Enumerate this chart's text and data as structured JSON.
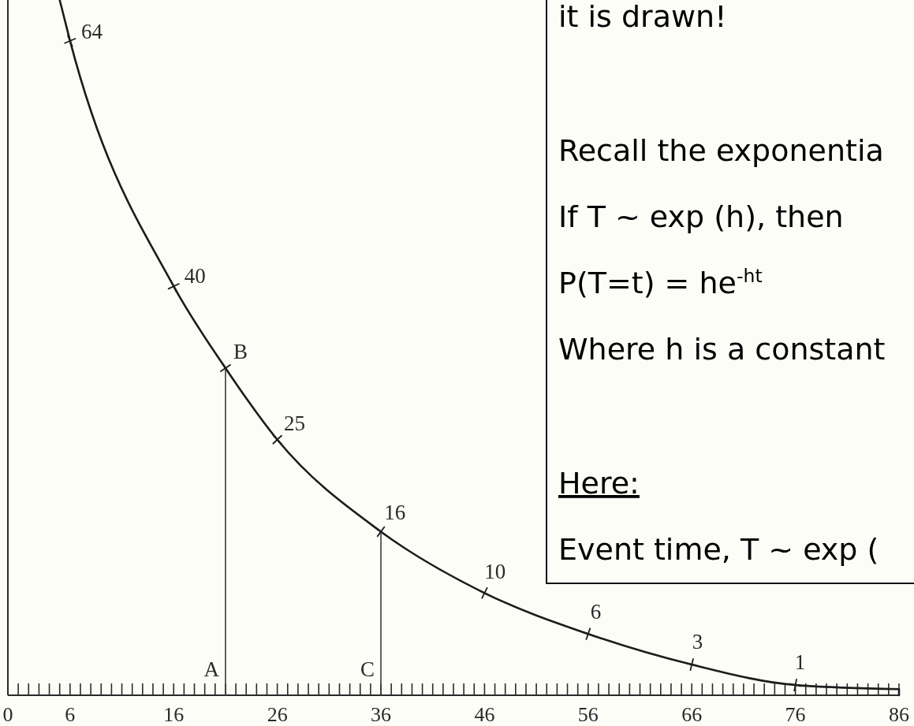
{
  "chart_data": {
    "type": "line",
    "xlim": [
      0,
      86
    ],
    "ylim": [
      0,
      68
    ],
    "tick_labels": "x",
    "xticks": [
      0,
      {
        "value": 1,
        "label": null
      },
      {
        "value": 2,
        "label": null
      },
      {
        "value": 3,
        "label": null
      },
      {
        "value": 4,
        "label": null
      },
      {
        "value": 5,
        "label": null
      },
      6,
      {
        "value": 7,
        "label": null
      },
      {
        "value": 8,
        "label": null
      },
      {
        "value": 9,
        "label": null
      },
      {
        "value": 10,
        "label": null
      },
      {
        "value": 11,
        "label": null
      },
      {
        "value": 12,
        "label": null
      },
      {
        "value": 13,
        "label": null
      },
      {
        "value": 14,
        "label": null
      },
      {
        "value": 15,
        "label": null
      },
      16,
      {
        "value": 17,
        "label": null
      },
      {
        "value": 18,
        "label": null
      },
      {
        "value": 19,
        "label": null
      },
      {
        "value": 20,
        "label": null
      },
      {
        "value": 21,
        "label": null
      },
      {
        "value": 22,
        "label": null
      },
      {
        "value": 23,
        "label": null
      },
      {
        "value": 24,
        "label": null
      },
      {
        "value": 25,
        "label": null
      },
      26,
      {
        "value": 27,
        "label": null
      },
      {
        "value": 28,
        "label": null
      },
      {
        "value": 29,
        "label": null
      },
      {
        "value": 30,
        "label": null
      },
      {
        "value": 31,
        "label": null
      },
      {
        "value": 32,
        "label": null
      },
      {
        "value": 33,
        "label": null
      },
      {
        "value": 34,
        "label": null
      },
      {
        "value": 35,
        "label": null
      },
      36,
      {
        "value": 37,
        "label": null
      },
      {
        "value": 38,
        "label": null
      },
      {
        "value": 39,
        "label": null
      },
      {
        "value": 40,
        "label": null
      },
      {
        "value": 41,
        "label": null
      },
      {
        "value": 42,
        "label": null
      },
      {
        "value": 43,
        "label": null
      },
      {
        "value": 44,
        "label": null
      },
      {
        "value": 45,
        "label": null
      },
      46,
      {
        "value": 47,
        "label": null
      },
      {
        "value": 48,
        "label": null
      },
      {
        "value": 49,
        "label": null
      },
      {
        "value": 50,
        "label": null
      },
      {
        "value": 51,
        "label": null
      },
      {
        "value": 52,
        "label": null
      },
      {
        "value": 53,
        "label": null
      },
      {
        "value": 54,
        "label": null
      },
      {
        "value": 55,
        "label": null
      },
      56,
      {
        "value": 57,
        "label": null
      },
      {
        "value": 58,
        "label": null
      },
      {
        "value": 59,
        "label": null
      },
      {
        "value": 60,
        "label": null
      },
      {
        "value": 61,
        "label": null
      },
      {
        "value": 62,
        "label": null
      },
      {
        "value": 63,
        "label": null
      },
      {
        "value": 64,
        "label": null
      },
      {
        "value": 65,
        "label": null
      },
      66,
      {
        "value": 67,
        "label": null
      },
      {
        "value": 68,
        "label": null
      },
      {
        "value": 69,
        "label": null
      },
      {
        "value": 70,
        "label": null
      },
      {
        "value": 71,
        "label": null
      },
      {
        "value": 72,
        "label": null
      },
      {
        "value": 73,
        "label": null
      },
      {
        "value": 74,
        "label": null
      },
      {
        "value": 75,
        "label": null
      },
      76,
      {
        "value": 77,
        "label": null
      },
      {
        "value": 78,
        "label": null
      },
      {
        "value": 79,
        "label": null
      },
      {
        "value": 80,
        "label": null
      },
      {
        "value": 81,
        "label": null
      },
      {
        "value": 82,
        "label": null
      },
      {
        "value": 83,
        "label": null
      },
      {
        "value": 84,
        "label": null
      },
      {
        "value": 85,
        "label": null
      },
      86
    ],
    "series": [
      {
        "color": "#1c1c1c",
        "x": [
          5,
          6,
          16,
          21,
          26,
          36,
          46,
          56,
          66,
          76,
          86,
          86
        ],
        "values": [
          68,
          64,
          40,
          32,
          25,
          16,
          10,
          6,
          3,
          1,
          0.6,
          0
        ]
      },
      {
        "name": "A",
        "type": "line",
        "color": "#3a3a3a",
        "x": [
          21,
          21
        ],
        "values": [
          0,
          32
        ]
      },
      {
        "name": "C",
        "type": "line",
        "color": "#3a3a3a",
        "x": [
          36,
          36
        ],
        "values": [
          0,
          16
        ]
      },
      {
        "type": "scatter",
        "color": "#1c1c1c",
        "marker": "cross",
        "x": [
          6,
          16,
          21,
          26,
          36,
          46,
          56,
          66,
          76
        ],
        "values": [
          64,
          40,
          32,
          25,
          16,
          10,
          6,
          3,
          1
        ],
        "value_labels": [
          "64",
          "40",
          null,
          "25",
          "16",
          "10",
          "6",
          "3",
          "1"
        ]
      }
    ],
    "annotations": [
      "it is drawn!",
      "Recall the exponentia",
      "If T ~ exp (h), then",
      "P(T=t) = he$^{-ht}$",
      "Where h is a constant",
      "Here:",
      "Event time, T ~ exp (",
      {
        "text": "B",
        "x": 21,
        "y": 32
      }
    ]
  }
}
